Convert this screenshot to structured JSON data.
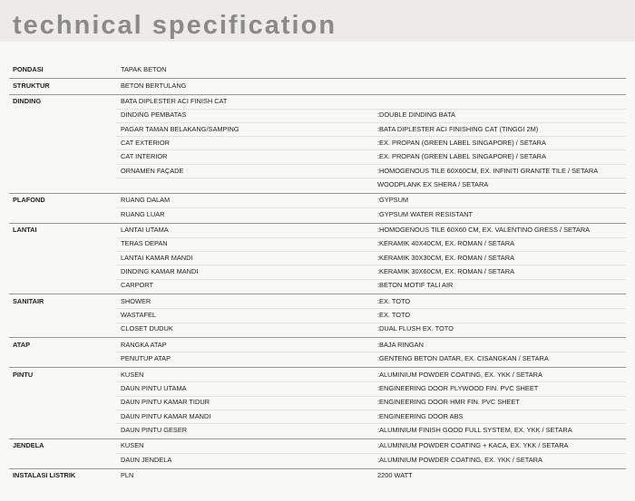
{
  "header": {
    "title": "Technical Specification"
  },
  "sections": [
    {
      "category": "PONDASI",
      "rows": [
        {
          "item": "TAPAK BETON"
        }
      ]
    },
    {
      "category": "STRUKTUR",
      "rows": [
        {
          "item": "BETON BERTULANG"
        }
      ]
    },
    {
      "category": "DINDING",
      "rows": [
        {
          "item": "BATA DIPLESTER ACI FINISH CAT"
        },
        {
          "item": "DINDING PEMBATAS",
          "value": ":DOUBLE DINDING BATA"
        },
        {
          "item": "PAGAR TAMAN BELAKANG/SAMPING",
          "value": ":BATA  DIPLESTER ACI FINISHING CAT (TINGGI 2M)"
        },
        {
          "item": "CAT EXTERIOR",
          "value": ":EX. PROPAN (GREEN LABEL SINGAPORE) / SETARA"
        },
        {
          "item": "CAT INTERIOR",
          "value": ":EX. PROPAN (GREEN LABEL SINGAPORE) / SETARA"
        },
        {
          "item": "ORNAMEN FAÇADE",
          "value": ":HOMOGENOUS TILE 60X60CM, EX. INFINITI GRANITE TILE / SETARA"
        },
        {
          "value": " WOODPLANK EX SHERA / SETARA"
        }
      ]
    },
    {
      "category": "PLAFOND",
      "rows": [
        {
          "item": "RUANG DALAM",
          "value": ":GYPSUM"
        },
        {
          "item": "RUANG LUAR",
          "value": ":GYPSUM WATER RESISTANT"
        }
      ]
    },
    {
      "category": "LANTAI",
      "rows": [
        {
          "item": "LANTAI UTAMA",
          "value": ":HOMOGENOUS TILE 60X60 CM, EX. VALENTINO GRESS / SETARA"
        },
        {
          "item": "TERAS DEPAN",
          "value": ":KERAMIK 40X40CM, EX. ROMAN / SETARA"
        },
        {
          "item": "LANTAI KAMAR MANDI",
          "value": ":KERAMIK 30X30CM, EX. ROMAN / SETARA"
        },
        {
          "item": "DINDING KAMAR MANDI",
          "value": ":KERAMIK 30X60CM, EX. ROMAN / SETARA"
        },
        {
          "item": "CARPORT",
          "value": ":BETON MOTIF TALI AIR"
        }
      ]
    },
    {
      "category": "SANITAIR",
      "rows": [
        {
          "item": "SHOWER",
          "value": ":EX. TOTO"
        },
        {
          "item": "WASTAFEL",
          "value": ":EX. TOTO"
        },
        {
          "item": "CLOSET DUDUK",
          "value": ":DUAL FLUSH EX. TOTO"
        }
      ]
    },
    {
      "category": "ATAP",
      "rows": [
        {
          "item": "RANGKA ATAP",
          "value": ":BAJA RINGAN"
        },
        {
          "item": "PENUTUP ATAP",
          "value": ":GENTENG BETON DATAR, EX. CISANGKAN / SETARA"
        }
      ]
    },
    {
      "category": "PINTU",
      "rows": [
        {
          "item": "KUSEN",
          "value": ":ALUMINIUM  POWDER COATING, EX. YKK / SETARA"
        },
        {
          "item": "DAUN PINTU UTAMA",
          "value": ":ENGINEERING DOOR PLYWOOD FIN. PVC SHEET"
        },
        {
          "item": "DAUN PINTU KAMAR TIDUR",
          "value": ":ENGINEERING DOOR HMR FIN. PVC SHEET"
        },
        {
          "item": "DAUN PINTU KAMAR MANDI",
          "value": ":ENGINEERING DOOR ABS"
        },
        {
          "item": "DAUN PINTU GESER",
          "value": ":ALUMINIUM  FINISH GOOD FULL SYSTEM, EX. YKK / SETARA"
        }
      ]
    },
    {
      "category": "JENDELA",
      "rows": [
        {
          "item": "KUSEN",
          "value": ":ALUMINIUM  POWDER COATING + KACA, EX. YKK / SETARA"
        },
        {
          "item": "DAUN JENDELA",
          "value": ":ALUMINIUM  POWDER COATING, EX. YKK / SETARA"
        }
      ]
    },
    {
      "category": "INSTALASI LISTRIK",
      "rows": [
        {
          "item": "PLN",
          "value": "2200 WATT"
        }
      ]
    }
  ]
}
